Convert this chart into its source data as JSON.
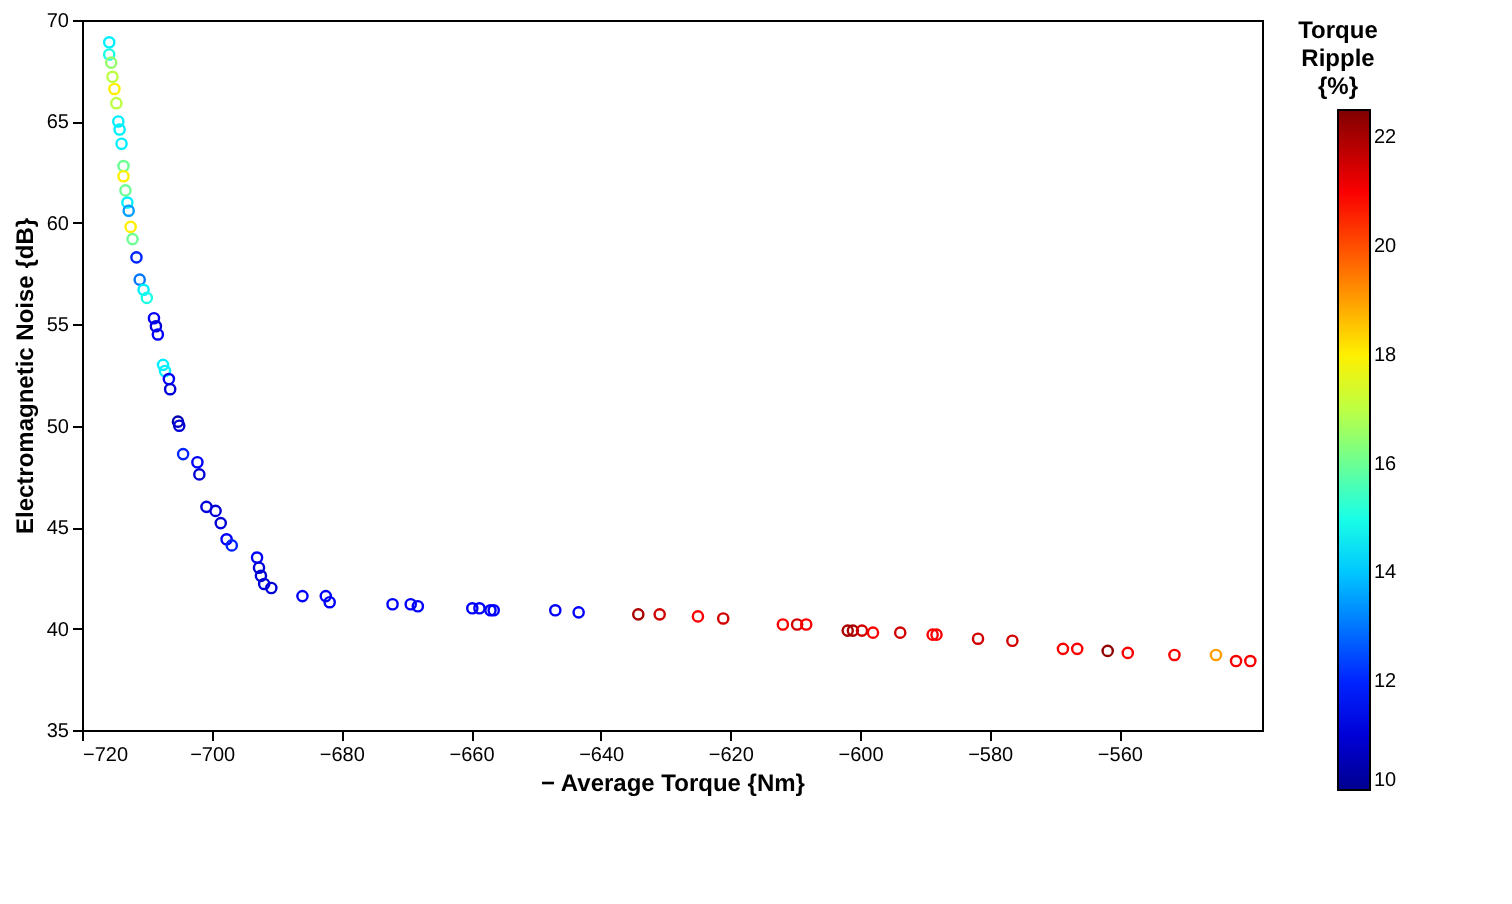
{
  "chart_data": {
    "type": "scatter",
    "xlabel": "− Average Torque {Nm}",
    "ylabel": "Electromagnetic Noise {dB}",
    "legend_title": "Torque Ripple {%}",
    "x": [
      -715.8,
      -715.8,
      -715.5,
      -715.3,
      -715.0,
      -714.7,
      -714.4,
      -714.2,
      -713.9,
      -713.6,
      -713.6,
      -713.3,
      -713.0,
      -712.8,
      -712.5,
      -712.2,
      -711.6,
      -711.1,
      -710.5,
      -710.0,
      -708.9,
      -708.6,
      -708.3,
      -707.5,
      -707.2,
      -706.6,
      -706.4,
      -705.2,
      -705.0,
      -704.4,
      -702.2,
      -701.9,
      -700.8,
      -699.4,
      -698.6,
      -697.7,
      -696.9,
      -693.0,
      -692.7,
      -692.4,
      -691.9,
      -690.8,
      -686.0,
      -682.4,
      -681.8,
      -672.1,
      -669.3,
      -668.2,
      -659.8,
      -658.7,
      -657.0,
      -656.5,
      -647.0,
      -643.4,
      -634.2,
      -630.9,
      -625.0,
      -621.1,
      -611.9,
      -609.7,
      -608.3,
      -601.9,
      -601.1,
      -599.7,
      -598.0,
      -593.8,
      -588.8,
      -588.2,
      -581.8,
      -576.5,
      -568.7,
      -566.5,
      -561.8,
      -558.7,
      -551.5,
      -545.1,
      -542.0,
      -539.8
    ],
    "values": [
      68.9,
      68.3,
      67.9,
      67.2,
      66.6,
      65.9,
      65.0,
      64.6,
      63.9,
      62.8,
      62.3,
      61.6,
      61.0,
      60.6,
      59.8,
      59.2,
      58.3,
      57.2,
      56.7,
      56.3,
      55.3,
      54.9,
      54.5,
      53.0,
      52.7,
      52.3,
      51.8,
      50.2,
      50.0,
      48.6,
      48.2,
      47.6,
      46.0,
      45.8,
      45.2,
      44.4,
      44.1,
      43.5,
      43.0,
      42.6,
      42.2,
      42.0,
      41.6,
      41.6,
      41.3,
      41.2,
      41.2,
      41.1,
      41.0,
      41.0,
      40.9,
      40.9,
      40.9,
      40.8,
      40.7,
      40.7,
      40.6,
      40.5,
      40.2,
      40.2,
      40.2,
      39.9,
      39.9,
      39.9,
      39.8,
      39.8,
      39.7,
      39.7,
      39.5,
      39.4,
      39.0,
      39.0,
      38.9,
      38.8,
      38.7,
      38.7,
      38.4,
      38.4
    ],
    "cvalues": [
      14.5,
      15,
      16.5,
      17,
      18,
      17,
      14.5,
      14.5,
      14.5,
      16,
      18,
      16,
      14.5,
      13.5,
      18,
      16,
      12,
      13,
      14.5,
      15,
      11.5,
      11,
      11.5,
      14.5,
      14.5,
      11.5,
      11,
      10.5,
      11,
      12,
      11.5,
      11,
      11,
      11,
      11,
      11.5,
      12,
      11.5,
      11,
      11,
      11,
      11,
      11.5,
      11.5,
      11.5,
      11.5,
      11.5,
      11.5,
      11.5,
      11.5,
      11.5,
      11.5,
      11.5,
      11.5,
      22,
      21.5,
      21,
      21.5,
      21,
      21.5,
      21,
      22,
      22,
      21.5,
      21,
      21.5,
      21,
      21,
      21.5,
      21.5,
      21,
      21,
      22.3,
      21,
      21,
      19,
      21,
      21
    ],
    "xlim": [
      -720,
      -538
    ],
    "xticks": [
      -720,
      -700,
      -680,
      -660,
      -640,
      -620,
      -600,
      -580,
      -560
    ],
    "ylim": [
      35,
      70
    ],
    "yticks": [
      35,
      40,
      45,
      50,
      55,
      60,
      65,
      70
    ],
    "clim": [
      10,
      22.5
    ],
    "cticks": [
      10,
      12,
      14,
      16,
      18,
      20,
      22
    ],
    "marker": "circle",
    "grid": false
  }
}
